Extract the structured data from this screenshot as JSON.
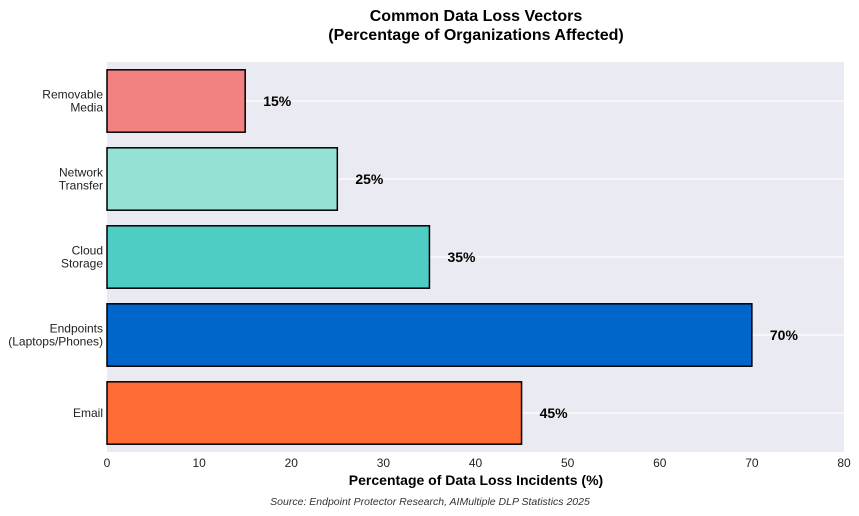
{
  "chart_data": {
    "type": "bar",
    "orientation": "horizontal",
    "title": "Common Data Loss Vectors",
    "subtitle": "(Percentage of Organizations Affected)",
    "xlabel": "Percentage of Data Loss Incidents (%)",
    "ylabel": "",
    "xlim": [
      0,
      80
    ],
    "xticks": [
      0,
      10,
      20,
      30,
      40,
      50,
      60,
      70,
      80
    ],
    "grid": "horizontal",
    "categories": [
      [
        "Email"
      ],
      [
        "Endpoints",
        "(Laptops/Phones)"
      ],
      [
        "Cloud",
        "Storage"
      ],
      [
        "Network",
        "Transfer"
      ],
      [
        "Removable",
        "Media"
      ]
    ],
    "values": [
      45,
      70,
      35,
      25,
      15
    ],
    "data_labels": [
      "45%",
      "70%",
      "35%",
      "25%",
      "15%"
    ],
    "colors": [
      "#ff6b35",
      "#0066cc",
      "#4ecdc4",
      "#95e1d3",
      "#f38181"
    ],
    "background": "#eaeaf2",
    "source": "Source: Endpoint Protector Research, AIMultiple DLP Statistics 2025"
  }
}
